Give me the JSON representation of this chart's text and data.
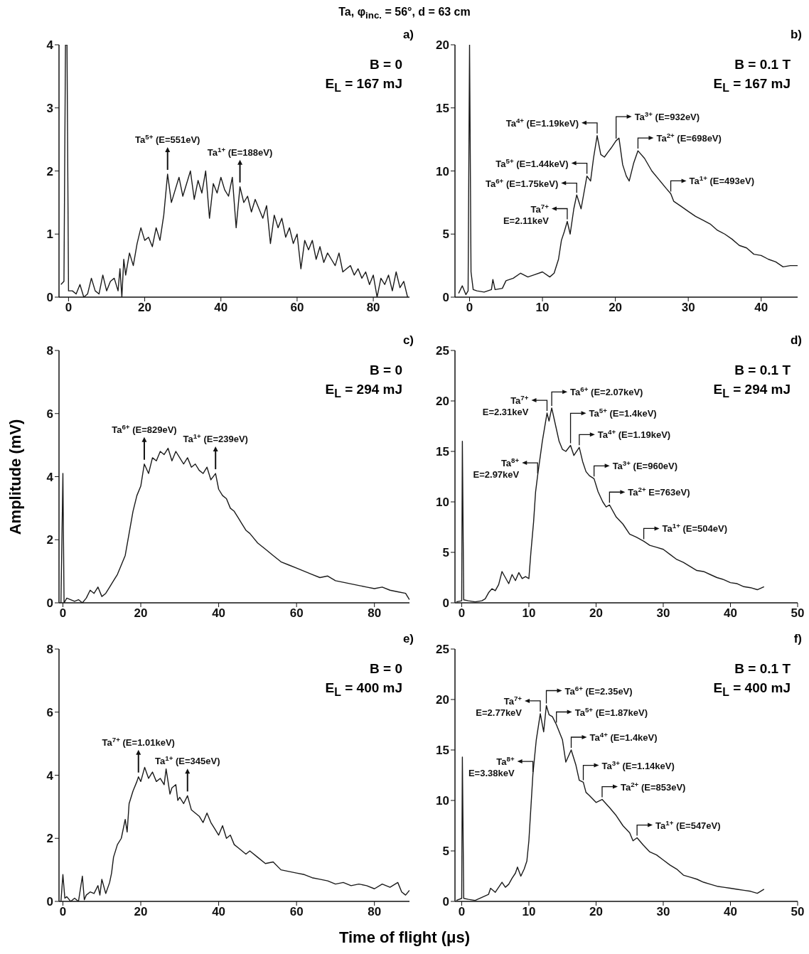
{
  "chart_data": [
    {
      "type": "line",
      "title": "Ta, φ$_{inc.}$ = 56°, d = 63 cm",
      "subtitle": "a)",
      "annotations": [
        "B = 0",
        "E$_{L}$ = 167 mJ",
        {
          "text": "Ta$^{5+}$ (E=551eV)",
          "x": 26,
          "y": 1.95
        },
        {
          "text": "Ta$^{1+}$ (E=188eV)",
          "x": 45,
          "y": 1.75
        }
      ],
      "x": [
        -2,
        -1.2,
        -0.8,
        -0.4,
        0,
        1,
        2,
        3,
        4,
        5,
        6,
        7,
        8,
        9,
        10,
        11,
        12,
        13,
        13.5,
        14,
        14.5,
        15,
        16,
        17,
        18,
        19,
        20,
        21,
        22,
        23,
        24,
        25,
        26,
        27,
        28,
        29,
        30,
        31,
        32,
        33,
        34,
        35,
        36,
        37,
        38,
        39,
        40,
        41,
        42,
        43,
        44,
        45,
        46,
        47,
        48,
        49,
        50,
        51,
        52,
        53,
        54,
        55,
        56,
        57,
        58,
        59,
        60,
        61,
        62,
        63,
        64,
        65,
        66,
        67,
        68,
        69,
        70,
        71,
        72,
        73,
        74,
        75,
        76,
        77,
        78,
        79,
        80,
        81,
        82,
        83,
        84,
        85,
        86,
        87,
        88,
        89
      ],
      "values": [
        0.2,
        0.25,
        4,
        4,
        0.1,
        0.1,
        0.05,
        0.2,
        0,
        0.05,
        0.3,
        0.1,
        0.05,
        0.35,
        0.1,
        0.25,
        0.3,
        0.1,
        0.45,
        0,
        0.6,
        0.35,
        0.7,
        0.5,
        0.85,
        1.1,
        0.9,
        0.95,
        0.8,
        1.1,
        0.9,
        1.3,
        1.95,
        1.5,
        1.7,
        1.9,
        1.6,
        1.8,
        2.0,
        1.55,
        1.85,
        1.65,
        2.0,
        1.25,
        1.8,
        1.65,
        1.9,
        1.7,
        1.6,
        1.9,
        1.1,
        1.75,
        1.5,
        1.6,
        1.35,
        1.55,
        1.4,
        1.25,
        1.45,
        0.85,
        1.3,
        1.1,
        1.25,
        0.95,
        1.1,
        0.85,
        1.0,
        0.45,
        0.9,
        0.75,
        0.9,
        0.6,
        0.8,
        0.55,
        0.7,
        0.6,
        0.5,
        0.7,
        0.4,
        0.45,
        0.5,
        0.35,
        0.45,
        0.3,
        0.4,
        0.2,
        0.35,
        0,
        0.3,
        0.2,
        0.35,
        0.1,
        0.4,
        0.15,
        0.25,
        0
      ],
      "color": "#1a1a1a",
      "xlim": [
        -2.5,
        89.5
      ],
      "xticks": [
        0,
        20,
        40,
        60,
        80
      ],
      "ylim": [
        0,
        4
      ],
      "yticks": [
        0,
        1,
        2,
        3,
        4
      ]
    },
    {
      "type": "line",
      "subtitle": "b)",
      "annotations": [
        "B = 0.1 T",
        "E$_{L}$ = 167 mJ",
        {
          "text": "Ta$^{7+}$\nE=2.11keV",
          "x": 13.4,
          "y": 6.0
        },
        {
          "text": "Ta$^{6+}$ (E=1.75keV)",
          "x": 14.7,
          "y": 8.1
        },
        {
          "text": "Ta$^{5+}$ (E=1.44keV)",
          "x": 16.1,
          "y": 9.6
        },
        {
          "text": "Ta$^{4+}$ (E=1.19keV)",
          "x": 17.5,
          "y": 12.8
        },
        {
          "text": "Ta$^{3+}$ (E=932eV)",
          "x": 20.1,
          "y": 12.4
        },
        {
          "text": "Ta$^{2+}$ (E=698eV)",
          "x": 23.1,
          "y": 11.6
        },
        {
          "text": "Ta$^{1+}$ (E=493eV)",
          "x": 27.6,
          "y": 8.2
        }
      ],
      "x": [
        -1.5,
        -1,
        -0.5,
        -0.2,
        0,
        0.2,
        0.5,
        1,
        2,
        3,
        3.2,
        3.5,
        4.5,
        5,
        6,
        7,
        8,
        9,
        10,
        11,
        11.6,
        12.2,
        12.6,
        13,
        13.4,
        13.8,
        14.3,
        14.7,
        15.3,
        16.1,
        16.6,
        17,
        17.5,
        18,
        18.5,
        19,
        19.4,
        20.1,
        20.5,
        21,
        21.5,
        21.9,
        22.5,
        23.1,
        24,
        25,
        26,
        27,
        27.6,
        28,
        29,
        30,
        31,
        32,
        33,
        34,
        35,
        36,
        37,
        38,
        39,
        40,
        41,
        42,
        43,
        44,
        45
      ],
      "values": [
        0.3,
        0.9,
        0.2,
        0.5,
        20,
        2,
        0.6,
        0.5,
        0.4,
        0.6,
        1.4,
        0.6,
        0.7,
        1.3,
        1.5,
        1.9,
        1.6,
        1.8,
        2.0,
        1.6,
        1.9,
        3.0,
        4.5,
        5.2,
        6.0,
        5.0,
        7.0,
        8.1,
        7.0,
        9.6,
        9.2,
        11.0,
        12.8,
        11.3,
        11.1,
        11.5,
        11.8,
        12.4,
        12.6,
        10.5,
        9.6,
        9.2,
        10.6,
        11.6,
        11.0,
        10.0,
        9.3,
        8.6,
        8.2,
        7.6,
        7.2,
        6.8,
        6.4,
        6.1,
        5.8,
        5.3,
        5.0,
        4.6,
        4.1,
        3.9,
        3.4,
        3.3,
        3.0,
        2.8,
        2.4,
        2.5,
        2.5
      ],
      "color": "#1a1a1a",
      "xlim": [
        -2,
        45
      ],
      "xticks": [
        0,
        10,
        20,
        30,
        40
      ],
      "ylim": [
        0,
        20
      ],
      "yticks": [
        0,
        5,
        10,
        15,
        20
      ]
    },
    {
      "type": "line",
      "subtitle": "c)",
      "ylabel": "Amplitude (mV)",
      "annotations": [
        "B = 0",
        "E$_{L}$ = 294 mJ",
        {
          "text": "Ta$^{6+}$ (E=829eV)",
          "x": 20.9,
          "y": 4.4
        },
        {
          "text": "Ta$^{1+}$ (E=239eV)",
          "x": 39.2,
          "y": 4.1
        }
      ],
      "x": [
        -0.5,
        0,
        0.3,
        1,
        2,
        3,
        4,
        5,
        6,
        7,
        8,
        9,
        10,
        11,
        12,
        13,
        14,
        15,
        16,
        17,
        18,
        19,
        20,
        20.9,
        22,
        23,
        24,
        25,
        26,
        27,
        28,
        29,
        30,
        31,
        32,
        33,
        34,
        35,
        36,
        37,
        38,
        39.2,
        40,
        41,
        42,
        43,
        44,
        45,
        46,
        47,
        48,
        50,
        52,
        54,
        56,
        58,
        60,
        62,
        64,
        66,
        68,
        70,
        72,
        74,
        76,
        78,
        80,
        82,
        84,
        86,
        88,
        89
      ],
      "values": [
        0,
        4.1,
        0,
        0.15,
        0.1,
        0.05,
        0.1,
        0,
        0.15,
        0.4,
        0.3,
        0.5,
        0.2,
        0.3,
        0.5,
        0.7,
        0.9,
        1.2,
        1.5,
        2.2,
        2.9,
        3.4,
        3.7,
        4.4,
        4.1,
        4.6,
        4.5,
        4.8,
        4.7,
        4.9,
        4.5,
        4.8,
        4.6,
        4.4,
        4.6,
        4.3,
        4.4,
        4.2,
        4.1,
        4.3,
        3.9,
        4.1,
        3.6,
        3.4,
        3.3,
        3.0,
        2.9,
        2.7,
        2.5,
        2.3,
        2.2,
        1.9,
        1.7,
        1.5,
        1.3,
        1.2,
        1.1,
        1.0,
        0.9,
        0.8,
        0.85,
        0.7,
        0.65,
        0.6,
        0.55,
        0.5,
        0.45,
        0.5,
        0.4,
        0.35,
        0.3,
        0.1
      ],
      "color": "#1a1a1a",
      "xlim": [
        -1,
        89
      ],
      "xticks": [
        0,
        20,
        40,
        60,
        80
      ],
      "ylim": [
        0,
        8
      ],
      "yticks": [
        0,
        2,
        4,
        6,
        8
      ]
    },
    {
      "type": "line",
      "subtitle": "d)",
      "annotations": [
        "B = 0.1 T",
        "E$_{L}$ = 294 mJ",
        {
          "text": "Ta$^{8+}$\nE=2.97keV",
          "x": 11.3,
          "y": 12.6
        },
        {
          "text": "Ta$^{7+}$\nE=2.31keV",
          "x": 12.7,
          "y": 18.8
        },
        {
          "text": "Ta$^{6+}$ (E=2.07keV)",
          "x": 13.4,
          "y": 19.3
        },
        {
          "text": "Ta$^{5+}$ (E=1.4keV)",
          "x": 16.2,
          "y": 15.6
        },
        {
          "text": "Ta$^{4+}$ (E=1.19keV)",
          "x": 17.5,
          "y": 15.4
        },
        {
          "text": "Ta$^{3+}$ (E=960eV)",
          "x": 19.7,
          "y": 12.3
        },
        {
          "text": "Ta$^{2+}$ E=763eV)",
          "x": 22,
          "y": 9.7
        },
        {
          "text": "Ta$^{1+}$ (E=504eV)",
          "x": 27.1,
          "y": 6.1
        }
      ],
      "x": [
        -0.8,
        0,
        0.1,
        0.3,
        1,
        2,
        3,
        3.5,
        4,
        4.5,
        5,
        5.5,
        6,
        6.5,
        7,
        7.5,
        8,
        8.5,
        9,
        9.5,
        10,
        10.3,
        10.7,
        11,
        11.3,
        12,
        12.7,
        13,
        13.4,
        14,
        14.5,
        15,
        15.5,
        16.2,
        16.7,
        17.5,
        18,
        18.5,
        19,
        19.7,
        20.3,
        21,
        21.5,
        22,
        23,
        24,
        25,
        26,
        27.1,
        28,
        29,
        30,
        31,
        32,
        33,
        34,
        35,
        36,
        37,
        38,
        39,
        40,
        41,
        42,
        43,
        44,
        45
      ],
      "values": [
        0.1,
        0.2,
        16,
        0.3,
        0.2,
        0.1,
        0.2,
        0.4,
        1.0,
        1.4,
        1.2,
        1.8,
        3.1,
        2.5,
        1.9,
        2.8,
        2.2,
        3.0,
        2.4,
        2.6,
        2.4,
        5,
        8,
        11,
        12.6,
        16,
        18.8,
        18,
        19.3,
        17.5,
        16,
        15.2,
        15.0,
        15.6,
        14.6,
        15.4,
        14.0,
        13,
        12.6,
        12.3,
        11,
        10,
        9.5,
        9.7,
        8.5,
        7.8,
        6.8,
        6.5,
        6.1,
        5.7,
        5.5,
        5.3,
        4.8,
        4.3,
        4.0,
        3.6,
        3.2,
        3.1,
        2.8,
        2.5,
        2.3,
        2.0,
        1.9,
        1.6,
        1.5,
        1.3,
        1.6
      ],
      "color": "#1a1a1a",
      "xlim": [
        -1,
        50
      ],
      "xticks": [
        0,
        10,
        20,
        30,
        40,
        50
      ],
      "ylim": [
        0,
        25
      ],
      "yticks": [
        0,
        5,
        10,
        15,
        20,
        25
      ]
    },
    {
      "type": "line",
      "subtitle": "e)",
      "xlabel": "Time of flight (μs)",
      "annotations": [
        "B = 0",
        "E$_{L}$ = 400 mJ",
        {
          "text": "Ta$^{7+}$ (E=1.01keV)",
          "x": 19.4,
          "y": 3.95
        },
        {
          "text": "Ta$^{1+}$ (E=345eV)",
          "x": 32,
          "y": 3.35
        }
      ],
      "x": [
        -0.5,
        0,
        0.5,
        1,
        2,
        3,
        4,
        5,
        5.5,
        6,
        7,
        8,
        9,
        9.5,
        10,
        11,
        12,
        12.5,
        13,
        14,
        15,
        16,
        16.5,
        17,
        18,
        19,
        19.4,
        20,
        21,
        22,
        23,
        24,
        25,
        26,
        26.5,
        27.5,
        28,
        29,
        29.5,
        30,
        31,
        32,
        33,
        34,
        35,
        36,
        37,
        38,
        39,
        40,
        41,
        42,
        43,
        44,
        45,
        46,
        47,
        48,
        50,
        52,
        54,
        56,
        58,
        60,
        62,
        64,
        66,
        68,
        70,
        72,
        74,
        76,
        78,
        80,
        82,
        84,
        86,
        87,
        88,
        89
      ],
      "values": [
        0,
        0.85,
        0.1,
        0.15,
        0,
        0.1,
        0,
        0.8,
        0.05,
        0.2,
        0.3,
        0.25,
        0.5,
        0.2,
        0.7,
        0.25,
        0.6,
        0.9,
        1.4,
        1.8,
        2.0,
        2.6,
        2.2,
        3.1,
        3.5,
        3.8,
        3.95,
        3.8,
        4.25,
        3.9,
        4.1,
        3.8,
        3.9,
        3.7,
        4.2,
        3.4,
        3.6,
        3.7,
        3.2,
        3.3,
        3.1,
        3.35,
        2.9,
        2.8,
        2.7,
        2.5,
        2.8,
        2.5,
        2.3,
        2.1,
        2.4,
        2.0,
        2.1,
        1.8,
        1.7,
        1.6,
        1.5,
        1.6,
        1.4,
        1.2,
        1.25,
        1.0,
        0.95,
        0.9,
        0.85,
        0.75,
        0.7,
        0.65,
        0.55,
        0.6,
        0.5,
        0.55,
        0.5,
        0.4,
        0.55,
        0.45,
        0.6,
        0.3,
        0.2,
        0.35
      ],
      "color": "#1a1a1a",
      "xlim": [
        -1,
        89
      ],
      "xticks": [
        0,
        20,
        40,
        60,
        80
      ],
      "ylim": [
        0,
        8
      ],
      "yticks": [
        0,
        2,
        4,
        6,
        8
      ]
    },
    {
      "type": "line",
      "subtitle": "f)",
      "annotations": [
        "B = 0.1 T",
        "E$_{L}$ = 400 mJ",
        {
          "text": "Ta$^{8+}$\nE=3.38keV",
          "x": 10.6,
          "y": 12.6
        },
        {
          "text": "Ta$^{7+}$\nE=2.77keV",
          "x": 11.7,
          "y": 18.6
        },
        {
          "text": "Ta$^{6+}$ (E=2.35eV)",
          "x": 12.6,
          "y": 19.4
        },
        {
          "text": "Ta$^{5+}$ (E=1.87keV)",
          "x": 14.1,
          "y": 17.5
        },
        {
          "text": "Ta$^{4+}$ (E=1.4keV)",
          "x": 16.3,
          "y": 15.0
        },
        {
          "text": "Ta$^{3+}$ (E=1.14keV)",
          "x": 18.1,
          "y": 11.8
        },
        {
          "text": "Ta$^{2+}$ (E=853eV)",
          "x": 20.9,
          "y": 10.1
        },
        {
          "text": "Ta$^{1+}$ (E=547eV)",
          "x": 26.1,
          "y": 6.3
        }
      ],
      "x": [
        -0.8,
        0,
        0.1,
        0.3,
        1,
        2,
        3,
        4,
        4.3,
        5,
        5.5,
        6,
        6.5,
        7,
        7.5,
        8,
        8.3,
        8.8,
        9.3,
        9.7,
        10,
        10.6,
        11.1,
        11.7,
        12.2,
        12.6,
        13,
        13.5,
        14.1,
        15,
        15.5,
        16.3,
        17,
        17.5,
        18.1,
        18.5,
        19,
        20,
        20.9,
        22,
        23,
        24,
        25,
        25.5,
        26.1,
        27,
        28,
        29,
        30,
        31,
        32,
        33,
        34,
        35,
        36,
        37,
        38,
        39,
        40,
        41,
        42,
        43,
        44,
        45
      ],
      "values": [
        0.1,
        0.3,
        14.3,
        0.3,
        0.2,
        0.1,
        0.4,
        0.7,
        1.3,
        0.9,
        1.4,
        1.9,
        1.4,
        1.7,
        2.3,
        2.8,
        3.4,
        2.5,
        3.2,
        4,
        6,
        12.6,
        16,
        18.6,
        16.8,
        19.4,
        18.5,
        18.3,
        17.5,
        16.0,
        13.8,
        15.0,
        13.5,
        12,
        11.8,
        10.8,
        10.5,
        9.8,
        10.1,
        9.3,
        8.5,
        7.5,
        6.8,
        6.0,
        6.3,
        5.6,
        4.9,
        4.6,
        4.1,
        3.6,
        3.2,
        2.6,
        2.4,
        2.2,
        1.9,
        1.7,
        1.5,
        1.4,
        1.3,
        1.2,
        1.1,
        1.0,
        0.8,
        1.2
      ],
      "color": "#1a1a1a",
      "xlim": [
        -1,
        50
      ],
      "xticks": [
        0,
        10,
        20,
        30,
        40,
        50
      ],
      "ylim": [
        0,
        25
      ],
      "yticks": [
        0,
        5,
        10,
        15,
        20,
        25
      ]
    }
  ]
}
